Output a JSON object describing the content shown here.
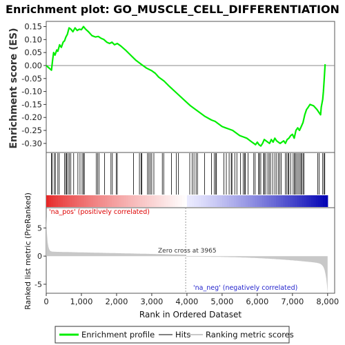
{
  "chart_data": {
    "type": "line",
    "title": "Enrichment plot: GO_MUSCLE_CELL_DIFFERENTIATION",
    "xlabel": "Rank in Ordered Dataset",
    "xlim": [
      0,
      8200
    ],
    "x_ticks": [
      0,
      1000,
      2000,
      3000,
      4000,
      5000,
      6000,
      7000,
      8000
    ],
    "x_tick_labels": [
      "0",
      "1,000",
      "2,000",
      "3,000",
      "4,000",
      "5,000",
      "6,000",
      "7,000",
      "8,000"
    ],
    "es_panel": {
      "ylabel": "Enrichment score (ES)",
      "ylim": [
        -0.335,
        0.17
      ],
      "y_ticks": [
        0.15,
        0.1,
        0.05,
        0.0,
        -0.05,
        -0.1,
        -0.15,
        -0.2,
        -0.25,
        -0.3
      ],
      "y_tick_labels": [
        "0.15",
        "0.10",
        "0.05",
        "0.00",
        "-0.05",
        "-0.10",
        "-0.15",
        "-0.20",
        "-0.25",
        "-0.30"
      ],
      "series": [
        {
          "name": "Enrichment profile",
          "color": "#00ee00",
          "x": [
            0,
            150,
            180,
            210,
            250,
            300,
            330,
            380,
            430,
            480,
            520,
            560,
            600,
            650,
            700,
            760,
            820,
            880,
            940,
            1000,
            1060,
            1120,
            1200,
            1300,
            1400,
            1480,
            1560,
            1640,
            1720,
            1800,
            1870,
            1940,
            2020,
            2120,
            2250,
            2400,
            2550,
            2700,
            2850,
            3000,
            3100,
            3200,
            3350,
            3500,
            3700,
            3900,
            4100,
            4300,
            4500,
            4700,
            4800,
            4900,
            5000,
            5100,
            5200,
            5300,
            5400,
            5500,
            5600,
            5700,
            5800,
            5850,
            5900,
            5950,
            6000,
            6050,
            6100,
            6150,
            6200,
            6250,
            6300,
            6350,
            6400,
            6450,
            6500,
            6550,
            6600,
            6650,
            6700,
            6750,
            6800,
            6850,
            6900,
            6950,
            7000,
            7050,
            7100,
            7150,
            7200,
            7250,
            7300,
            7350,
            7400,
            7450,
            7500,
            7600,
            7700,
            7750,
            7800,
            7820,
            7860,
            7880,
            7900,
            7930
          ],
          "y": [
            0.0,
            -0.018,
            0.02,
            0.05,
            0.04,
            0.06,
            0.055,
            0.08,
            0.07,
            0.09,
            0.095,
            0.11,
            0.12,
            0.145,
            0.14,
            0.13,
            0.145,
            0.135,
            0.14,
            0.138,
            0.15,
            0.14,
            0.13,
            0.115,
            0.11,
            0.112,
            0.105,
            0.1,
            0.09,
            0.085,
            0.09,
            0.08,
            0.085,
            0.075,
            0.06,
            0.04,
            0.02,
            0.005,
            -0.01,
            -0.02,
            -0.03,
            -0.045,
            -0.06,
            -0.08,
            -0.105,
            -0.13,
            -0.155,
            -0.175,
            -0.195,
            -0.21,
            -0.215,
            -0.225,
            -0.235,
            -0.24,
            -0.245,
            -0.25,
            -0.26,
            -0.27,
            -0.275,
            -0.28,
            -0.29,
            -0.295,
            -0.3,
            -0.305,
            -0.295,
            -0.305,
            -0.31,
            -0.3,
            -0.285,
            -0.29,
            -0.295,
            -0.3,
            -0.285,
            -0.295,
            -0.28,
            -0.29,
            -0.295,
            -0.3,
            -0.295,
            -0.29,
            -0.3,
            -0.285,
            -0.28,
            -0.27,
            -0.265,
            -0.28,
            -0.25,
            -0.24,
            -0.25,
            -0.235,
            -0.22,
            -0.19,
            -0.17,
            -0.16,
            -0.15,
            -0.155,
            -0.17,
            -0.18,
            -0.19,
            -0.16,
            -0.13,
            -0.1,
            -0.06,
            0.005
          ]
        }
      ]
    },
    "hits_panel": {
      "name": "Hits",
      "hit_ranks": [
        150,
        170,
        230,
        260,
        330,
        370,
        520,
        560,
        580,
        620,
        660,
        700,
        780,
        900,
        960,
        1020,
        1060,
        1080,
        1420,
        1460,
        1500,
        1660,
        1840,
        1880,
        1990,
        2020,
        2480,
        2650,
        2700,
        2720,
        2880,
        2920,
        2960,
        3000,
        3060,
        3300,
        3340,
        3560,
        3700,
        3760,
        4080,
        4150,
        4200,
        4260,
        4300,
        4500,
        4700,
        4780,
        4820,
        4840,
        5050,
        5120,
        5200,
        5260,
        5280,
        5360,
        5420,
        5520,
        5600,
        5640,
        5660,
        5740,
        5900,
        5940,
        6040,
        6060,
        6100,
        6180,
        6200,
        6240,
        6300,
        6340,
        6380,
        6440,
        6500,
        6550,
        6600,
        6640,
        6680,
        6800,
        6840,
        6880,
        6900,
        6950,
        7020,
        7060,
        7080,
        7120,
        7160,
        7200,
        7240,
        7260,
        7300,
        7330,
        7720,
        7760,
        7860,
        7900,
        7920
      ]
    },
    "ranking_panel": {
      "name": "Ranking metric scores",
      "ylabel": "Ranked list metric (PreRanked)",
      "ylim": [
        -6.6,
        8.6
      ],
      "y_ticks": [
        5,
        0,
        -5
      ],
      "y_tick_labels": [
        "5",
        "0",
        "-5"
      ],
      "zero_cross_label": "Zero cross at 3965",
      "zero_cross": 3965,
      "pos_label": "'na_pos' (positively correlated)",
      "neg_label": "'na_neg' (negatively correlated)",
      "pos_color": "#ff0000",
      "neg_color": "#3333ff",
      "fill_color": "#c8c8c8"
    },
    "legend": {
      "placement": "bottom",
      "items": [
        {
          "label": "Enrichment profile",
          "color": "#00ee00"
        },
        {
          "label": "Hits",
          "color": "#808080"
        },
        {
          "label": "Ranking metric scores",
          "color": "#c8c8c8"
        }
      ]
    },
    "colors": {
      "es_line": "#00ee00",
      "zero_line": "#888888",
      "hit": "#000000",
      "bar_red": "#e60000",
      "bar_blue": "#0000b4"
    }
  }
}
